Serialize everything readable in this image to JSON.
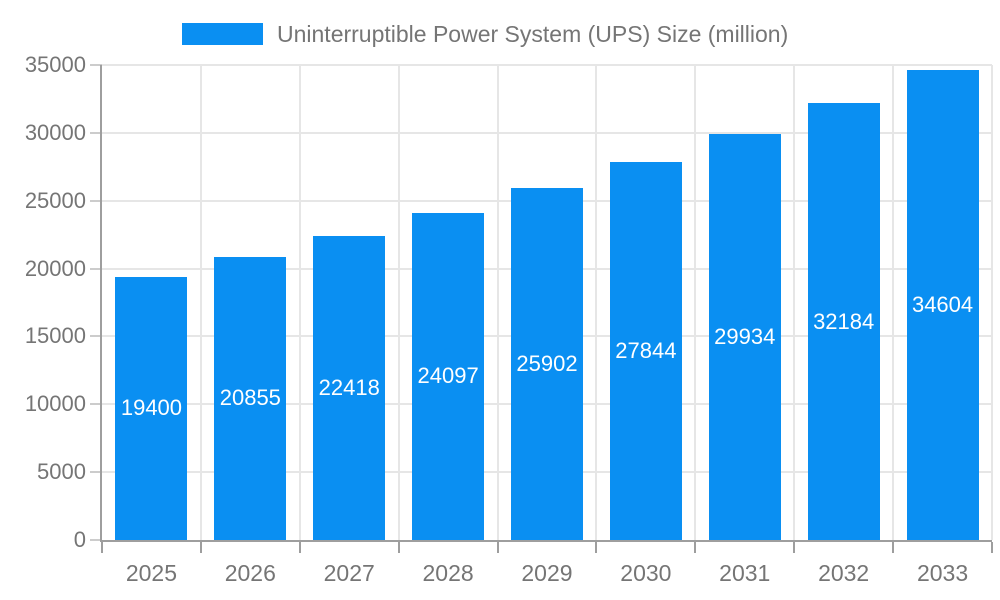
{
  "chart": {
    "legend": {
      "label": "Uninterruptible Power System (UPS) Size (million)"
    },
    "colors": {
      "bar": "#0A8FF2",
      "bar_label": "#FFFFFF",
      "axis_text": "#757575",
      "grid_line": "#E6E6E6",
      "axis_line": "#9E9E9E",
      "tick_line": "#CCCCCC"
    }
  },
  "chart_data": {
    "type": "bar",
    "categories": [
      "2025",
      "2026",
      "2027",
      "2028",
      "2029",
      "2030",
      "2031",
      "2032",
      "2033"
    ],
    "values": [
      19400,
      20855,
      22418,
      24097,
      25902,
      27844,
      29934,
      32184,
      34604
    ],
    "title": "Uninterruptible Power System (UPS) Size (million)",
    "xlabel": "",
    "ylabel": "",
    "ylim": [
      0,
      35000
    ],
    "yticks": [
      0,
      5000,
      10000,
      15000,
      20000,
      25000,
      30000,
      35000
    ],
    "grid": true,
    "legend_position": "top",
    "bar_labels": true,
    "bar_label_position": "center"
  }
}
